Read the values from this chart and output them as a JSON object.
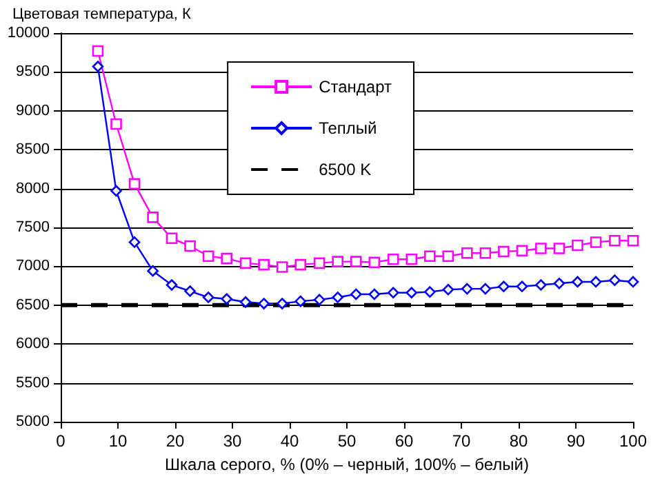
{
  "chart_data": {
    "type": "line",
    "ylabel": "Цветовая температура, К",
    "xlabel": "Шкала серого, % (0% – черный, 100% – белый)",
    "x": [
      6.5,
      9.7,
      12.9,
      16.1,
      19.4,
      22.6,
      25.8,
      29.0,
      32.3,
      35.5,
      38.7,
      41.9,
      45.2,
      48.4,
      51.6,
      54.8,
      58.1,
      61.3,
      64.5,
      67.7,
      71.0,
      74.2,
      77.4,
      80.6,
      83.9,
      87.1,
      90.3,
      93.5,
      96.8,
      100
    ],
    "series": [
      {
        "name": "Стандарт",
        "color": "#ff00ff",
        "marker": "square",
        "values": [
          9770,
          8830,
          8060,
          7630,
          7360,
          7260,
          7130,
          7100,
          7040,
          7020,
          6990,
          7020,
          7040,
          7060,
          7060,
          7050,
          7090,
          7090,
          7130,
          7130,
          7170,
          7170,
          7190,
          7200,
          7230,
          7230,
          7270,
          7310,
          7330,
          7330
        ]
      },
      {
        "name": "Теплый",
        "color": "#0000ff",
        "marker": "diamond",
        "values": [
          9570,
          7970,
          7310,
          6940,
          6760,
          6680,
          6600,
          6580,
          6540,
          6520,
          6520,
          6550,
          6570,
          6600,
          6640,
          6640,
          6660,
          6660,
          6670,
          6700,
          6710,
          6710,
          6740,
          6740,
          6760,
          6780,
          6800,
          6800,
          6820,
          6800
        ]
      }
    ],
    "ref_lines": [
      {
        "axis": "y",
        "value": 6500,
        "label": "6500 K",
        "color": "#000000",
        "line_style": "dashed"
      }
    ],
    "xlim": [
      0,
      100
    ],
    "xticks": [
      0,
      10,
      20,
      30,
      40,
      50,
      60,
      70,
      80,
      90,
      100
    ],
    "ylim": [
      5000,
      10000
    ],
    "yticks": [
      5000,
      5500,
      6000,
      6500,
      7000,
      7500,
      8000,
      8500,
      9000,
      9500,
      10000
    ],
    "grid": "y",
    "legend": "top right"
  }
}
